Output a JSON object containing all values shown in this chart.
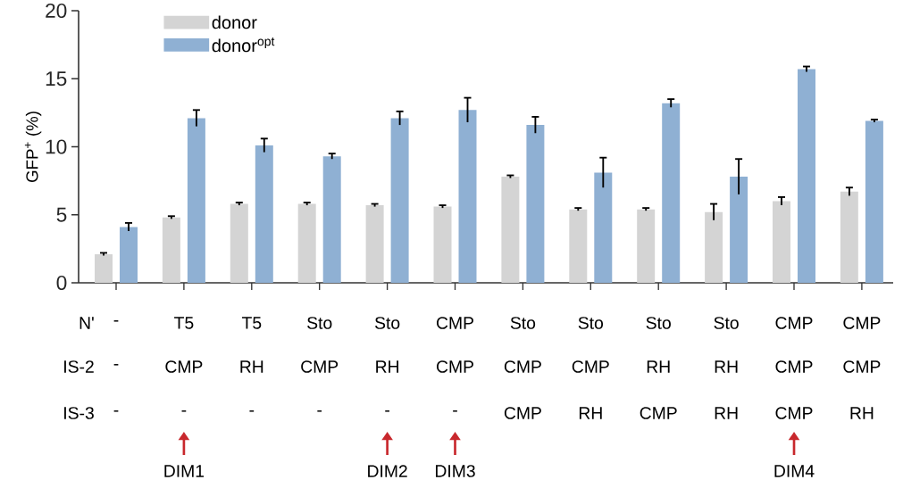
{
  "chart_data": {
    "type": "bar",
    "ylabel": "GFP$^{+}$ (%)",
    "categories": [
      null,
      null,
      null,
      null,
      null,
      null,
      null,
      null,
      null,
      null,
      null,
      null
    ],
    "series": [
      {
        "name": "donor",
        "color": "#d4d4d4",
        "values": [
          2.1,
          4.8,
          5.8,
          5.8,
          5.7,
          5.6,
          7.8,
          5.4,
          5.4,
          5.2,
          6.0,
          6.7
        ],
        "errors": [
          0.1,
          0.1,
          0.1,
          0.1,
          0.1,
          0.1,
          0.1,
          0.1,
          0.1,
          0.6,
          0.3,
          0.3
        ]
      },
      {
        "name": "donor$^{opt}$",
        "color": "#8fb0d3",
        "values": [
          4.1,
          12.1,
          10.1,
          9.3,
          12.1,
          12.7,
          11.6,
          8.1,
          13.2,
          7.8,
          15.7,
          11.9
        ],
        "errors": [
          0.3,
          0.6,
          0.5,
          0.2,
          0.5,
          0.9,
          0.6,
          1.1,
          0.3,
          1.3,
          0.2,
          0.1
        ]
      }
    ],
    "ylim": [
      0,
      20
    ],
    "yticks": [
      0,
      5,
      10,
      15,
      20
    ],
    "grid": false,
    "legend": "top left",
    "annotations": [
      "N'",
      "IS-2",
      "IS-3",
      "-",
      "T5",
      "T5",
      "Sto",
      "Sto",
      "CMP",
      "Sto",
      "Sto",
      "Sto",
      "Sto",
      "CMP",
      "CMP",
      "-",
      "CMP",
      "RH",
      "CMP",
      "RH",
      "CMP",
      "CMP",
      "CMP",
      "RH",
      "RH",
      "CMP",
      "CMP",
      "-",
      "-",
      "-",
      "-",
      "-",
      "-",
      "CMP",
      "RH",
      "CMP",
      "RH",
      "CMP",
      "RH",
      "DIM1",
      "DIM2",
      "DIM3",
      "DIM4"
    ]
  }
}
